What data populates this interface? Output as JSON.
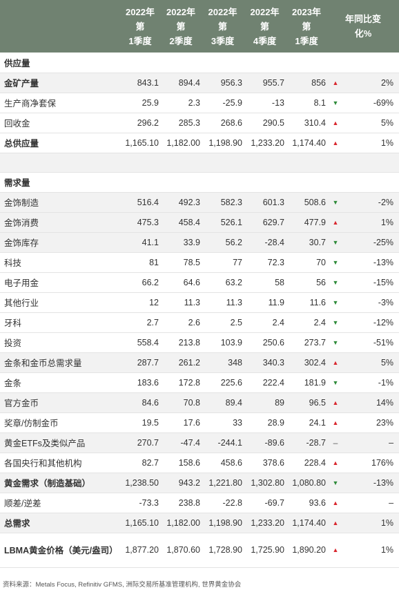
{
  "headers": [
    "2022年第1季度",
    "2022年第2季度",
    "2022年第3季度",
    "2022年第4季度",
    "2023年第1季度",
    "年同比变化%"
  ],
  "header_lines": [
    [
      "2022年",
      "第",
      "1季度"
    ],
    [
      "2022年",
      "第",
      "2季度"
    ],
    [
      "2022年",
      "第",
      "3季度"
    ],
    [
      "2022年",
      "第",
      "4季度"
    ],
    [
      "2023年",
      "第",
      "1季度"
    ],
    [
      "年同比变",
      "化%"
    ]
  ],
  "rows": [
    {
      "type": "section",
      "label": "供应量",
      "bold": true
    },
    {
      "type": "data",
      "label": "金矿产量",
      "bold": true,
      "shade": true,
      "values": [
        "843.1",
        "894.4",
        "956.3",
        "955.7",
        "856"
      ],
      "trend": "up",
      "yoy": "2%"
    },
    {
      "type": "data",
      "label": "生产商净套保",
      "values": [
        "25.9",
        "2.3",
        "-25.9",
        "-13",
        "8.1"
      ],
      "trend": "down",
      "yoy": "-69%"
    },
    {
      "type": "data",
      "label": "回收金",
      "values": [
        "296.2",
        "285.3",
        "268.6",
        "290.5",
        "310.4"
      ],
      "trend": "up",
      "yoy": "5%"
    },
    {
      "type": "data",
      "label": "总供应量",
      "bold": true,
      "values": [
        "1,165.10",
        "1,182.00",
        "1,198.90",
        "1,233.20",
        "1,174.40"
      ],
      "trend": "up",
      "yoy": "1%"
    },
    {
      "type": "gap",
      "shade": true
    },
    {
      "type": "section",
      "label": "需求量",
      "bold": true
    },
    {
      "type": "data",
      "label": "金饰制造",
      "shade": true,
      "values": [
        "516.4",
        "492.3",
        "582.3",
        "601.3",
        "508.6"
      ],
      "trend": "down",
      "yoy": "-2%"
    },
    {
      "type": "data",
      "label": "金饰消费",
      "shade": true,
      "values": [
        "475.3",
        "458.4",
        "526.1",
        "629.7",
        "477.9"
      ],
      "trend": "up",
      "yoy": "1%"
    },
    {
      "type": "data",
      "label": "金饰库存",
      "shade": true,
      "values": [
        "41.1",
        "33.9",
        "56.2",
        "-28.4",
        "30.7"
      ],
      "trend": "down",
      "yoy": "-25%"
    },
    {
      "type": "data",
      "label": "科技",
      "values": [
        "81",
        "78.5",
        "77",
        "72.3",
        "70"
      ],
      "trend": "down",
      "yoy": "-13%"
    },
    {
      "type": "data",
      "label": "电子用金",
      "values": [
        "66.2",
        "64.6",
        "63.2",
        "58",
        "56"
      ],
      "trend": "down",
      "yoy": "-15%"
    },
    {
      "type": "data",
      "label": "其他行业",
      "values": [
        "12",
        "11.3",
        "11.3",
        "11.9",
        "11.6"
      ],
      "trend": "down",
      "yoy": "-3%"
    },
    {
      "type": "data",
      "label": "牙科",
      "values": [
        "2.7",
        "2.6",
        "2.5",
        "2.4",
        "2.4"
      ],
      "trend": "down",
      "yoy": "-12%"
    },
    {
      "type": "data",
      "label": "投资",
      "values": [
        "558.4",
        "213.8",
        "103.9",
        "250.6",
        "273.7"
      ],
      "trend": "down",
      "yoy": "-51%"
    },
    {
      "type": "data",
      "label": "金条和金币总需求量",
      "shade": true,
      "values": [
        "287.7",
        "261.2",
        "348",
        "340.3",
        "302.4"
      ],
      "trend": "up",
      "yoy": "5%"
    },
    {
      "type": "data",
      "label": "金条",
      "values": [
        "183.6",
        "172.8",
        "225.6",
        "222.4",
        "181.9"
      ],
      "trend": "down",
      "yoy": "-1%"
    },
    {
      "type": "data",
      "label": "官方金币",
      "shade": true,
      "values": [
        "84.6",
        "70.8",
        "89.4",
        "89",
        "96.5"
      ],
      "trend": "up",
      "yoy": "14%"
    },
    {
      "type": "data",
      "label": "奖章/仿制金币",
      "values": [
        "19.5",
        "17.6",
        "33",
        "28.9",
        "24.1"
      ],
      "trend": "up",
      "yoy": "23%"
    },
    {
      "type": "data",
      "label": "黄金ETFs及类似产品",
      "shade": true,
      "values": [
        "270.7",
        "-47.4",
        "-244.1",
        "-89.6",
        "-28.7"
      ],
      "trend": "none",
      "trend_text": "–",
      "yoy": "–"
    },
    {
      "type": "data",
      "label": "各国央行和其他机构",
      "values": [
        "82.7",
        "158.6",
        "458.6",
        "378.6",
        "228.4"
      ],
      "trend": "up",
      "yoy": "176%"
    },
    {
      "type": "data",
      "label": "黄金需求（制造基础）",
      "bold": true,
      "shade": true,
      "values": [
        "1,238.50",
        "943.2",
        "1,221.80",
        "1,302.80",
        "1,080.80"
      ],
      "trend": "down",
      "yoy": "-13%"
    },
    {
      "type": "data",
      "label": "顺差/逆差",
      "values": [
        "-73.3",
        "238.8",
        "-22.8",
        "-69.7",
        "93.6"
      ],
      "trend": "up",
      "yoy": "–"
    },
    {
      "type": "data",
      "label": "总需求",
      "bold": true,
      "shade": true,
      "values": [
        "1,165.10",
        "1,182.00",
        "1,198.90",
        "1,233.20",
        "1,174.40"
      ],
      "trend": "up",
      "yoy": "1%"
    },
    {
      "type": "data",
      "label": "LBMA黄金价格（美元/盎司）",
      "bold": true,
      "tall": true,
      "values": [
        "1,877.20",
        "1,870.60",
        "1,728.90",
        "1,725.90",
        "1,890.20"
      ],
      "trend": "up",
      "yoy": "1%"
    }
  ],
  "source": "资料来源：Metals Focus, Refinitiv GFMS, 洲际交易所基准管理机构, 世界黄金协会",
  "colors": {
    "header_bg": "#708271",
    "up": "#d9272e",
    "down": "#2e8b3a",
    "shade": "#f2f2f2"
  }
}
